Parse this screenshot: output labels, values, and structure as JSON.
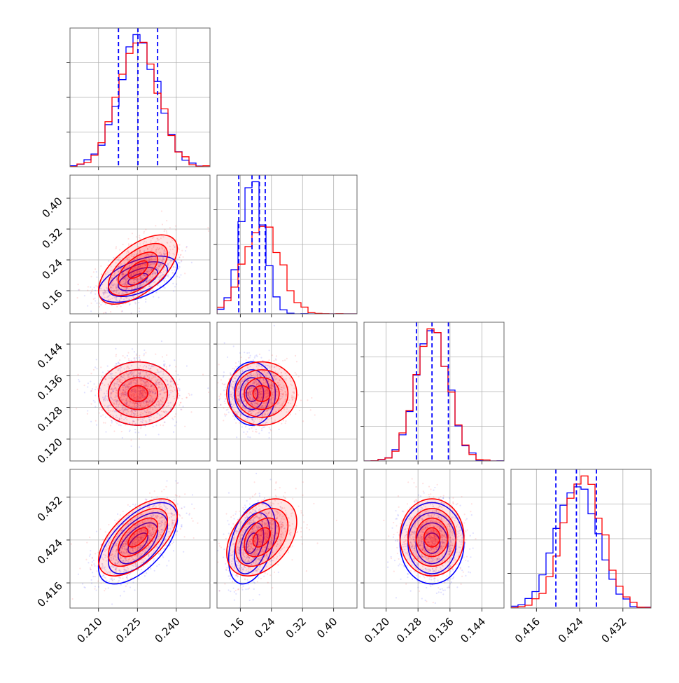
{
  "colors": {
    "series_a": "#0000ff",
    "series_b": "#ff0000",
    "grid": "#b0b0b0",
    "frame": "#666666"
  },
  "chart_data": {
    "type": "corner",
    "parameters": [
      {
        "range": [
          0.199,
          0.253
        ],
        "ticks": [
          0.21,
          0.225,
          0.24
        ],
        "tick_labels": [
          "0.210",
          "0.225",
          "0.240"
        ],
        "quantiles": [
          0.2177,
          0.2252,
          0.2328
        ],
        "grid": true
      },
      {
        "range": [
          0.1,
          0.46
        ],
        "ticks": [
          0.16,
          0.24,
          0.32,
          0.4
        ],
        "tick_labels": [
          "0.16",
          "0.24",
          "0.32",
          "0.40"
        ],
        "quantiles": [
          0.156,
          0.19,
          0.209,
          0.224
        ],
        "grid": true
      },
      {
        "range": [
          0.1145,
          0.1495
        ],
        "ticks": [
          0.12,
          0.128,
          0.136,
          0.144
        ],
        "tick_labels": [
          "0.120",
          "0.128",
          "0.136",
          "0.144"
        ],
        "quantiles": [
          0.1276,
          0.1315,
          0.1356
        ],
        "grid": true
      },
      {
        "range": [
          0.4113,
          0.4372
        ],
        "ticks": [
          0.416,
          0.424,
          0.432
        ],
        "tick_labels": [
          "0.416",
          "0.424",
          "0.432"
        ],
        "quantiles": [
          0.4196,
          0.4234,
          0.4271
        ],
        "grid": true
      }
    ],
    "series": [
      {
        "name": "",
        "color": "#0000ff",
        "means": [
          0.2252,
          0.19,
          0.1315,
          0.4234
        ],
        "sds": [
          0.0076,
          0.03,
          0.004,
          0.0038
        ],
        "correlations": {
          "1-0": 0.55,
          "2-0": 0.0,
          "2-1": 0.0,
          "3-0": 0.6,
          "3-1": 0.4,
          "3-2": 0.0
        }
      },
      {
        "name": "",
        "color": "#ff0000",
        "means": [
          0.2252,
          0.215,
          0.1315,
          0.4245
        ],
        "sds": [
          0.0076,
          0.045,
          0.004,
          0.0036
        ],
        "correlations": {
          "1-0": 0.6,
          "2-0": 0.0,
          "2-1": 0.0,
          "3-0": 0.6,
          "3-1": 0.4,
          "3-2": 0.0
        }
      }
    ]
  }
}
